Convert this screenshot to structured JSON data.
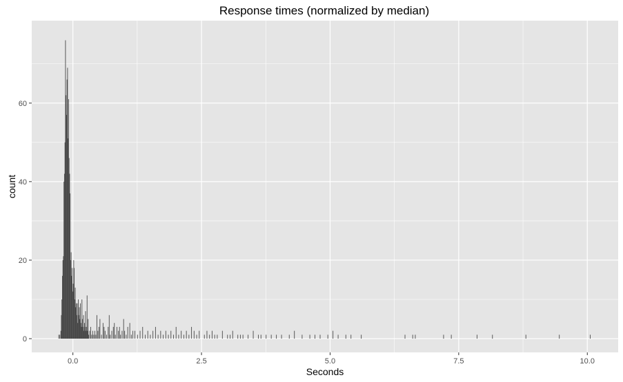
{
  "chart_data": {
    "type": "bar",
    "subtype": "histogram",
    "title": "Response times (normalized by median)",
    "xlabel": "Seconds",
    "ylabel": "count",
    "xlim": [
      -0.8,
      10.6
    ],
    "ylim": [
      -3.5,
      81
    ],
    "x_ticks": [
      {
        "value": 0.0,
        "label": "0.0"
      },
      {
        "value": 2.5,
        "label": "2.5"
      },
      {
        "value": 5.0,
        "label": "5.0"
      },
      {
        "value": 7.5,
        "label": "7.5"
      },
      {
        "value": 10.0,
        "label": "10.0"
      }
    ],
    "y_ticks": [
      {
        "value": 0,
        "label": "0"
      },
      {
        "value": 20,
        "label": "20"
      },
      {
        "value": 40,
        "label": "40"
      },
      {
        "value": 60,
        "label": "60"
      }
    ],
    "grid": true,
    "legend": "none",
    "bin_width": 0.01,
    "bar_color": "#474747",
    "panel_color": "#e5e5e5",
    "grid_color": "#ffffff",
    "bins": [
      [
        -0.28,
        1
      ],
      [
        -0.26,
        1
      ],
      [
        -0.24,
        2
      ],
      [
        -0.23,
        6
      ],
      [
        -0.22,
        10
      ],
      [
        -0.21,
        16
      ],
      [
        -0.2,
        20
      ],
      [
        -0.19,
        21
      ],
      [
        -0.18,
        40
      ],
      [
        -0.17,
        42
      ],
      [
        -0.16,
        50
      ],
      [
        -0.15,
        76
      ],
      [
        -0.14,
        62
      ],
      [
        -0.13,
        57
      ],
      [
        -0.12,
        66
      ],
      [
        -0.11,
        69
      ],
      [
        -0.1,
        51
      ],
      [
        -0.09,
        61
      ],
      [
        -0.08,
        46
      ],
      [
        -0.07,
        42
      ],
      [
        -0.06,
        37
      ],
      [
        -0.05,
        20
      ],
      [
        -0.04,
        22
      ],
      [
        -0.03,
        16
      ],
      [
        -0.02,
        18
      ],
      [
        -0.01,
        12
      ],
      [
        0.0,
        14
      ],
      [
        0.01,
        20
      ],
      [
        0.02,
        18
      ],
      [
        0.03,
        10
      ],
      [
        0.04,
        13
      ],
      [
        0.05,
        8
      ],
      [
        0.06,
        9
      ],
      [
        0.07,
        6
      ],
      [
        0.08,
        9
      ],
      [
        0.09,
        4
      ],
      [
        0.1,
        10
      ],
      [
        0.11,
        6
      ],
      [
        0.12,
        8
      ],
      [
        0.13,
        5
      ],
      [
        0.14,
        9
      ],
      [
        0.15,
        4
      ],
      [
        0.16,
        3
      ],
      [
        0.17,
        10
      ],
      [
        0.18,
        5
      ],
      [
        0.19,
        3
      ],
      [
        0.2,
        6
      ],
      [
        0.21,
        2
      ],
      [
        0.22,
        4
      ],
      [
        0.23,
        3
      ],
      [
        0.24,
        7
      ],
      [
        0.25,
        2
      ],
      [
        0.26,
        3
      ],
      [
        0.27,
        11
      ],
      [
        0.28,
        2
      ],
      [
        0.29,
        5
      ],
      [
        0.3,
        1
      ],
      [
        0.32,
        2
      ],
      [
        0.34,
        3
      ],
      [
        0.36,
        1
      ],
      [
        0.38,
        2
      ],
      [
        0.4,
        1
      ],
      [
        0.42,
        2
      ],
      [
        0.44,
        1
      ],
      [
        0.46,
        6
      ],
      [
        0.48,
        2
      ],
      [
        0.5,
        3
      ],
      [
        0.52,
        5
      ],
      [
        0.55,
        1
      ],
      [
        0.58,
        4
      ],
      [
        0.6,
        3
      ],
      [
        0.62,
        2
      ],
      [
        0.65,
        1
      ],
      [
        0.68,
        3
      ],
      [
        0.7,
        6
      ],
      [
        0.72,
        1
      ],
      [
        0.75,
        2
      ],
      [
        0.78,
        3
      ],
      [
        0.8,
        4
      ],
      [
        0.82,
        1
      ],
      [
        0.85,
        3
      ],
      [
        0.88,
        2
      ],
      [
        0.9,
        3
      ],
      [
        0.92,
        1
      ],
      [
        0.95,
        2
      ],
      [
        0.98,
        5
      ],
      [
        1.0,
        2
      ],
      [
        1.03,
        1
      ],
      [
        1.06,
        3
      ],
      [
        1.1,
        4
      ],
      [
        1.13,
        1
      ],
      [
        1.16,
        2
      ],
      [
        1.2,
        2
      ],
      [
        1.25,
        1
      ],
      [
        1.3,
        2
      ],
      [
        1.35,
        3
      ],
      [
        1.4,
        1
      ],
      [
        1.45,
        2
      ],
      [
        1.5,
        1
      ],
      [
        1.55,
        2
      ],
      [
        1.6,
        3
      ],
      [
        1.65,
        1
      ],
      [
        1.7,
        2
      ],
      [
        1.75,
        1
      ],
      [
        1.8,
        2
      ],
      [
        1.85,
        1
      ],
      [
        1.9,
        2
      ],
      [
        1.95,
        1
      ],
      [
        2.0,
        3
      ],
      [
        2.05,
        1
      ],
      [
        2.1,
        2
      ],
      [
        2.15,
        1
      ],
      [
        2.2,
        2
      ],
      [
        2.25,
        1
      ],
      [
        2.3,
        3
      ],
      [
        2.35,
        2
      ],
      [
        2.4,
        1
      ],
      [
        2.45,
        2
      ],
      [
        2.55,
        1
      ],
      [
        2.6,
        2
      ],
      [
        2.65,
        1
      ],
      [
        2.7,
        2
      ],
      [
        2.75,
        1
      ],
      [
        2.8,
        1
      ],
      [
        2.9,
        2
      ],
      [
        3.0,
        1
      ],
      [
        3.05,
        1
      ],
      [
        3.1,
        2
      ],
      [
        3.2,
        1
      ],
      [
        3.25,
        1
      ],
      [
        3.3,
        1
      ],
      [
        3.4,
        1
      ],
      [
        3.5,
        2
      ],
      [
        3.6,
        1
      ],
      [
        3.65,
        1
      ],
      [
        3.75,
        1
      ],
      [
        3.85,
        1
      ],
      [
        3.95,
        1
      ],
      [
        4.05,
        1
      ],
      [
        4.2,
        1
      ],
      [
        4.3,
        2
      ],
      [
        4.45,
        1
      ],
      [
        4.6,
        1
      ],
      [
        4.7,
        1
      ],
      [
        4.8,
        1
      ],
      [
        4.95,
        1
      ],
      [
        5.05,
        2
      ],
      [
        5.15,
        1
      ],
      [
        5.3,
        1
      ],
      [
        5.4,
        1
      ],
      [
        5.6,
        1
      ],
      [
        6.45,
        1
      ],
      [
        6.6,
        1
      ],
      [
        6.65,
        1
      ],
      [
        7.2,
        1
      ],
      [
        7.35,
        1
      ],
      [
        7.85,
        1
      ],
      [
        8.15,
        1
      ],
      [
        8.8,
        1
      ],
      [
        9.45,
        1
      ],
      [
        10.05,
        1
      ]
    ]
  }
}
